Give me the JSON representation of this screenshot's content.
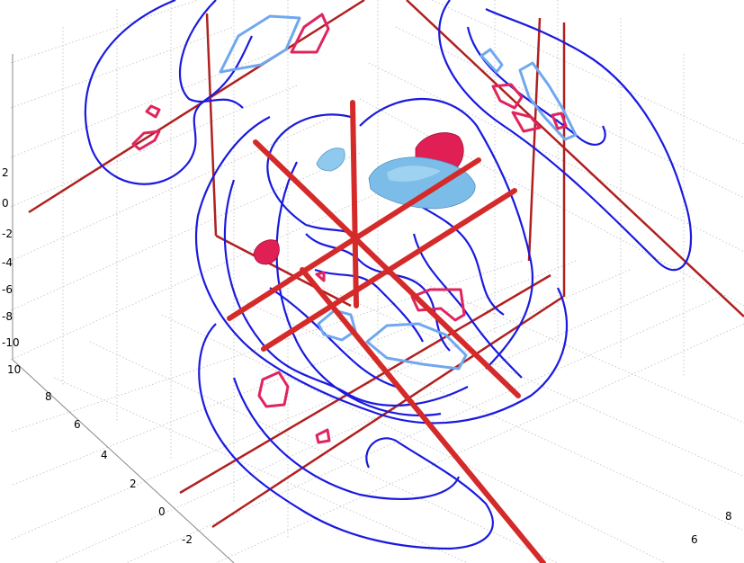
{
  "chart_data": {
    "type": "3d-isosurface-contour",
    "title": "",
    "xlabel": "",
    "ylabel": "",
    "zlabel": "",
    "grid": true,
    "colors": {
      "axis_lines": "#d42a2a",
      "projection_lines": "#b02020",
      "contour_dark": "#1a1adf",
      "contour_light": "#6fa8f0",
      "contour_red": "#e0245e",
      "iso_red": "#e01f55",
      "iso_blue": "#7bbde8",
      "grid": "#bdbdbd"
    },
    "z_axis": {
      "range": [
        -10,
        2
      ],
      "ticks": [
        "2",
        "0",
        "-2",
        "-4",
        "-6",
        "-8",
        "-10"
      ]
    },
    "y_axis": {
      "range": [
        -2,
        10
      ],
      "ticks": [
        "10",
        "8",
        "6",
        "4",
        "2",
        "0",
        "-2"
      ]
    },
    "x_axis": {
      "range": [
        6,
        8
      ],
      "ticks": [
        "8",
        "6"
      ]
    }
  }
}
